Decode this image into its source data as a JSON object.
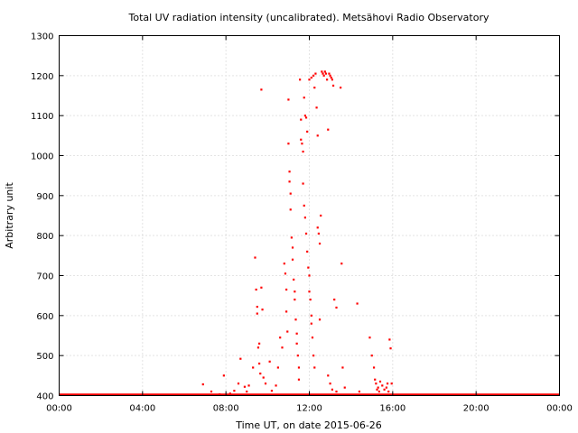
{
  "chart_data": {
    "type": "scatter",
    "title": "Total UV radiation intensity (uncalibrated). Metsähovi Radio Observatory",
    "xlabel": "Time UT, on date 2015-06-26",
    "ylabel": "Arbitrary unit",
    "xlim": [
      0,
      24
    ],
    "ylim": [
      400,
      1300
    ],
    "x_ticks": [
      {
        "value": 0,
        "label": "00:00"
      },
      {
        "value": 4,
        "label": "04:00"
      },
      {
        "value": 8,
        "label": "08:00"
      },
      {
        "value": 12,
        "label": "12:00"
      },
      {
        "value": 16,
        "label": "16:00"
      },
      {
        "value": 20,
        "label": "20:00"
      },
      {
        "value": 24,
        "label": "00:00"
      }
    ],
    "y_ticks": [
      400,
      500,
      600,
      700,
      800,
      900,
      1000,
      1100,
      1200,
      1300
    ],
    "grid": true,
    "series": [
      {
        "color": "#ff0000",
        "baseline": {
          "value": 400,
          "x_range": [
            0,
            24
          ]
        },
        "points": [
          [
            6.9,
            428
          ],
          [
            7.3,
            410
          ],
          [
            7.7,
            403
          ],
          [
            7.9,
            450
          ],
          [
            8.2,
            405
          ],
          [
            8.4,
            412
          ],
          [
            8.6,
            430
          ],
          [
            8.7,
            492
          ],
          [
            8.9,
            422
          ],
          [
            9.0,
            410
          ],
          [
            9.1,
            425
          ],
          [
            9.3,
            470
          ],
          [
            9.4,
            745
          ],
          [
            9.45,
            665
          ],
          [
            9.5,
            622
          ],
          [
            9.5,
            605
          ],
          [
            9.55,
            520
          ],
          [
            9.6,
            530
          ],
          [
            9.6,
            480
          ],
          [
            9.65,
            455
          ],
          [
            9.7,
            1165
          ],
          [
            9.7,
            670
          ],
          [
            9.75,
            615
          ],
          [
            9.8,
            445
          ],
          [
            9.9,
            430
          ],
          [
            10.1,
            485
          ],
          [
            10.2,
            412
          ],
          [
            10.4,
            425
          ],
          [
            10.5,
            470
          ],
          [
            10.6,
            545
          ],
          [
            10.7,
            520
          ],
          [
            10.8,
            730
          ],
          [
            10.85,
            705
          ],
          [
            10.9,
            665
          ],
          [
            10.9,
            610
          ],
          [
            10.95,
            560
          ],
          [
            11.0,
            1140
          ],
          [
            11.0,
            1030
          ],
          [
            11.05,
            960
          ],
          [
            11.05,
            935
          ],
          [
            11.1,
            905
          ],
          [
            11.1,
            865
          ],
          [
            11.15,
            795
          ],
          [
            11.2,
            770
          ],
          [
            11.2,
            740
          ],
          [
            11.25,
            690
          ],
          [
            11.3,
            660
          ],
          [
            11.3,
            640
          ],
          [
            11.35,
            590
          ],
          [
            11.4,
            555
          ],
          [
            11.4,
            530
          ],
          [
            11.45,
            500
          ],
          [
            11.5,
            470
          ],
          [
            11.5,
            440
          ],
          [
            11.55,
            1190
          ],
          [
            11.6,
            1090
          ],
          [
            11.6,
            1040
          ],
          [
            11.65,
            1030
          ],
          [
            11.7,
            1010
          ],
          [
            11.7,
            930
          ],
          [
            11.75,
            875
          ],
          [
            11.8,
            845
          ],
          [
            11.85,
            805
          ],
          [
            11.9,
            760
          ],
          [
            11.95,
            720
          ],
          [
            12.0,
            700
          ],
          [
            12.0,
            660
          ],
          [
            12.05,
            640
          ],
          [
            12.1,
            600
          ],
          [
            12.1,
            580
          ],
          [
            12.15,
            545
          ],
          [
            12.2,
            500
          ],
          [
            12.25,
            470
          ],
          [
            11.75,
            1145
          ],
          [
            11.8,
            1100
          ],
          [
            11.85,
            1095
          ],
          [
            11.9,
            1060
          ],
          [
            12.0,
            1190
          ],
          [
            12.1,
            1195
          ],
          [
            12.2,
            1200
          ],
          [
            12.25,
            1170
          ],
          [
            12.3,
            1205
          ],
          [
            12.35,
            1120
          ],
          [
            12.4,
            1050
          ],
          [
            12.4,
            820
          ],
          [
            12.45,
            805
          ],
          [
            12.5,
            780
          ],
          [
            12.5,
            590
          ],
          [
            12.55,
            850
          ],
          [
            12.6,
            1210
          ],
          [
            12.65,
            1205
          ],
          [
            12.7,
            1200
          ],
          [
            12.75,
            1210
          ],
          [
            12.8,
            1205
          ],
          [
            12.85,
            1190
          ],
          [
            12.9,
            1065
          ],
          [
            12.95,
            1205
          ],
          [
            13.0,
            1200
          ],
          [
            13.05,
            1195
          ],
          [
            13.1,
            1190
          ],
          [
            13.15,
            1175
          ],
          [
            13.2,
            640
          ],
          [
            13.3,
            620
          ],
          [
            13.5,
            1170
          ],
          [
            13.55,
            730
          ],
          [
            13.6,
            470
          ],
          [
            13.7,
            420
          ],
          [
            12.9,
            450
          ],
          [
            13.0,
            430
          ],
          [
            13.1,
            415
          ],
          [
            13.3,
            410
          ],
          [
            14.3,
            630
          ],
          [
            14.4,
            410
          ],
          [
            14.9,
            545
          ],
          [
            15.0,
            500
          ],
          [
            15.1,
            470
          ],
          [
            15.15,
            440
          ],
          [
            15.2,
            430
          ],
          [
            15.25,
            415
          ],
          [
            15.3,
            420
          ],
          [
            15.35,
            410
          ],
          [
            15.4,
            435
          ],
          [
            15.5,
            425
          ],
          [
            15.6,
            415
          ],
          [
            15.7,
            420
          ],
          [
            15.75,
            430
          ],
          [
            15.8,
            410
          ],
          [
            15.85,
            540
          ],
          [
            15.9,
            518
          ],
          [
            15.95,
            430
          ]
        ]
      }
    ]
  }
}
